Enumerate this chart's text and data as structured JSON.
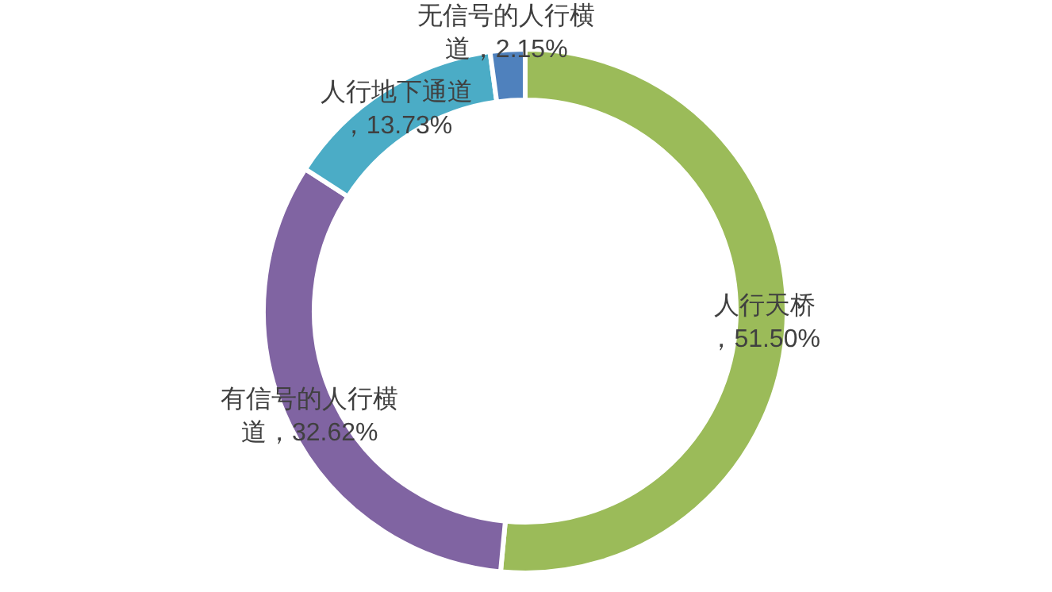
{
  "chart_data": {
    "type": "donut",
    "categories": [
      "人行天桥",
      "有信号的人行横道",
      "人行地下通道",
      "无信号的人行横道"
    ],
    "values": [
      51.5,
      32.62,
      13.73,
      2.15
    ],
    "colors": [
      "#9bbb59",
      "#8064a2",
      "#4bacc6",
      "#4f81bd"
    ],
    "value_labels": [
      "，51.50%",
      "，32.62%",
      "，13.73%",
      "，2.15%"
    ]
  }
}
